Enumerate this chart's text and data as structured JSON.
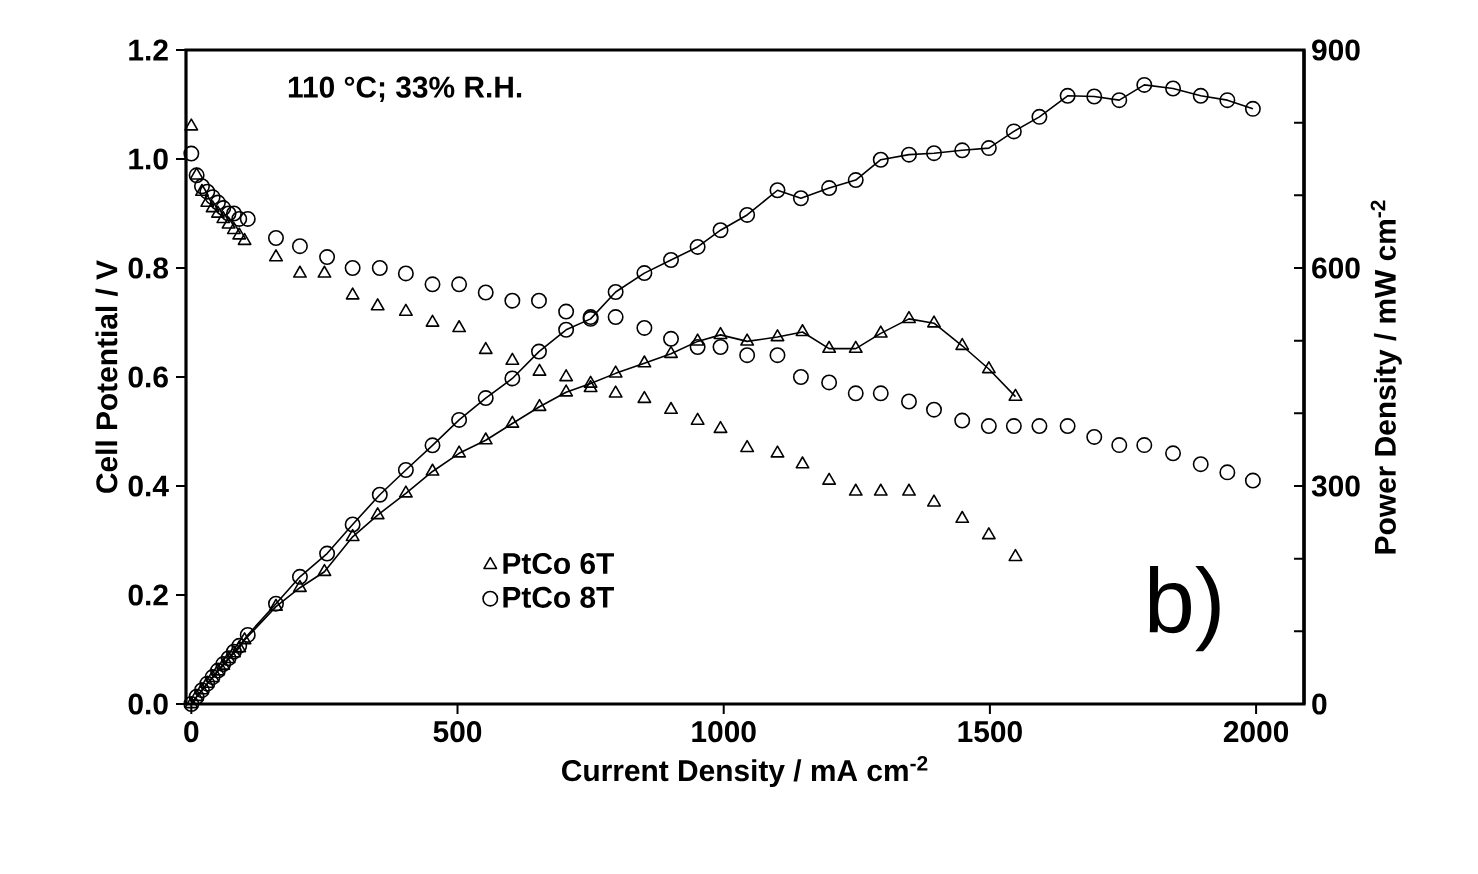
{
  "chart_data": {
    "type": "line",
    "xlabel": "Current Density / mA cm$^{-2}$",
    "ylabel": "Cell Potential / V",
    "y2label": "Power Density / mW cm$^{-2}$",
    "annotations": [
      "110 °C; 33% R.H.",
      "b)"
    ],
    "xlim": [
      -10,
      2090
    ],
    "xticks": [
      0,
      500,
      1000,
      1500,
      2000
    ],
    "ylim": [
      0,
      1.2
    ],
    "yticks": [
      {
        "value": 0,
        "label": "0.0"
      },
      0.2,
      0.4,
      0.6,
      0.8,
      {
        "value": 1,
        "label": "1.0"
      },
      1.2
    ],
    "y2lim": [
      0,
      900
    ],
    "y2ticks": [
      0,
      {
        "value": 100,
        "label": null
      },
      {
        "value": 200,
        "label": null
      },
      300,
      {
        "value": 400,
        "label": null
      },
      {
        "value": 500,
        "label": null
      },
      600,
      {
        "value": 700,
        "label": null
      },
      {
        "value": 800,
        "label": null
      },
      900
    ],
    "legend": "bottom left",
    "series": [
      {
        "name": "PtCo 6T",
        "type": "scatter",
        "marker": "triangle",
        "color": "#000000",
        "x": [
          0,
          10,
          20,
          30,
          40,
          50,
          60,
          70,
          80,
          90,
          100,
          159,
          204,
          250,
          303,
          350,
          403,
          453,
          503,
          553,
          603,
          654,
          704,
          750,
          797,
          851,
          901,
          951,
          994,
          1044,
          1101,
          1148,
          1198,
          1248,
          1295,
          1348,
          1395,
          1448,
          1498,
          1548
        ],
        "values": [
          1.06,
          0.97,
          0.94,
          0.92,
          0.91,
          0.9,
          0.89,
          0.88,
          0.87,
          0.86,
          0.85,
          0.82,
          0.79,
          0.79,
          0.75,
          0.73,
          0.72,
          0.7,
          0.69,
          0.65,
          0.63,
          0.61,
          0.6,
          0.58,
          0.57,
          0.56,
          0.54,
          0.52,
          0.505,
          0.47,
          0.46,
          0.44,
          0.41,
          0.39,
          0.39,
          0.39,
          0.37,
          0.34,
          0.31,
          0.27
        ]
      },
      {
        "name": "PtCo 8T",
        "type": "scatter",
        "marker": "circle",
        "color": "#000000",
        "x": [
          0,
          10,
          20,
          30,
          40,
          50,
          60,
          70,
          80,
          90,
          106,
          159,
          204,
          255,
          303,
          354,
          403,
          453,
          503,
          553,
          603,
          653,
          704,
          750,
          797,
          851,
          901,
          951,
          994,
          1044,
          1101,
          1145,
          1198,
          1248,
          1295,
          1348,
          1395,
          1448,
          1498,
          1545,
          1593,
          1646,
          1696,
          1743,
          1790,
          1844,
          1896,
          1946,
          1994
        ],
        "values": [
          1.01,
          0.97,
          0.95,
          0.94,
          0.93,
          0.92,
          0.91,
          0.9,
          0.9,
          0.89,
          0.89,
          0.855,
          0.84,
          0.82,
          0.8,
          0.8,
          0.79,
          0.77,
          0.77,
          0.755,
          0.74,
          0.74,
          0.72,
          0.71,
          0.71,
          0.69,
          0.67,
          0.655,
          0.655,
          0.64,
          0.64,
          0.6,
          0.59,
          0.57,
          0.57,
          0.555,
          0.54,
          0.52,
          0.51,
          0.51,
          0.51,
          0.51,
          0.49,
          0.475,
          0.475,
          0.46,
          0.44,
          0.425,
          0.41
        ]
      },
      {
        "axis": "y2",
        "marker": "circle",
        "line_style": "solid",
        "color": "#000000",
        "x": [
          0,
          10,
          20,
          30,
          40,
          50,
          60,
          70,
          80,
          90,
          106,
          159,
          204,
          255,
          303,
          354,
          403,
          453,
          503,
          553,
          603,
          653,
          704,
          750,
          797,
          851,
          901,
          951,
          994,
          1044,
          1101,
          1145,
          1198,
          1248,
          1295,
          1348,
          1395,
          1448,
          1498,
          1545,
          1593,
          1646,
          1696,
          1743,
          1790,
          1844,
          1896,
          1946,
          1994
        ],
        "values": [
          0,
          10,
          19,
          28,
          37,
          46,
          55,
          63,
          72,
          80,
          95,
          138,
          175,
          207,
          247,
          288,
          322,
          356,
          391,
          421,
          448,
          485,
          515,
          530,
          567,
          593,
          611,
          629,
          652,
          673,
          707,
          696,
          710,
          721,
          749,
          756,
          758,
          762,
          765,
          788,
          808,
          837,
          836,
          831,
          852,
          847,
          837,
          831,
          819
        ]
      },
      {
        "axis": "y2",
        "marker": "triangle",
        "line_style": "solid",
        "color": "#000000",
        "x": [
          0,
          10,
          20,
          30,
          40,
          50,
          60,
          70,
          80,
          90,
          100,
          159,
          204,
          250,
          303,
          350,
          403,
          453,
          503,
          553,
          603,
          654,
          704,
          750,
          797,
          851,
          901,
          951,
          994,
          1044,
          1101,
          1148,
          1198,
          1248,
          1295,
          1348,
          1395,
          1448,
          1498,
          1548
        ],
        "values": [
          0,
          10,
          19,
          28,
          36,
          45,
          53,
          62,
          70,
          77,
          88,
          134,
          160,
          182,
          230,
          260,
          290,
          320,
          345,
          363,
          386,
          409,
          429,
          441,
          455,
          469,
          482,
          499,
          508,
          499,
          505,
          512,
          489,
          489,
          510,
          530,
          524,
          493,
          461,
          423
        ]
      }
    ]
  }
}
